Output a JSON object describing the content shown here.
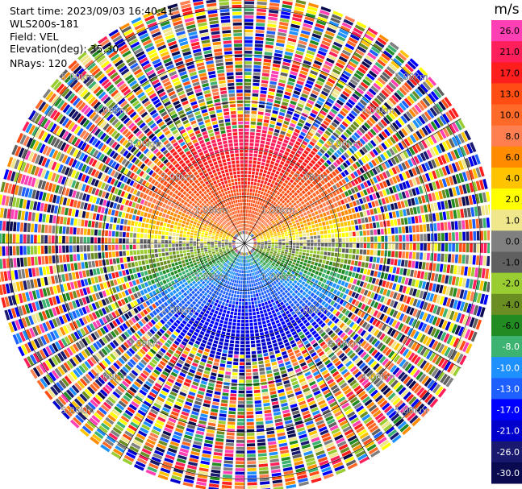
{
  "header": {
    "start_time": "Start time: 2023/09/03 16:40:41",
    "instrument": "WLS200s-181",
    "field": "Field: VEL",
    "elevation": "Elevation(deg): 35.30",
    "nrays": "NRays: 120"
  },
  "chart_data": {
    "type": "heatmap",
    "projection": "polar-ppi",
    "field": "VEL",
    "nrays": 120,
    "range_rings_km": [
      1,
      2,
      3,
      4,
      5
    ],
    "range_ring_labels": [
      "1.00km",
      "2.00km",
      "3.00km",
      "4.00km",
      "5.00km"
    ],
    "coherent_range_km": [
      0.4,
      2.2
    ],
    "colorbar": {
      "unit": "m/s",
      "ticks": [
        "26.0",
        "21.0",
        "17.0",
        "13.0",
        "10.0",
        "8.0",
        "6.0",
        "4.0",
        "2.0",
        "1.0",
        "0.0",
        "-1.0",
        "-2.0",
        "-4.0",
        "-6.0",
        "-8.0",
        "-10.0",
        "-13.0",
        "-17.0",
        "-21.0",
        "-26.0",
        "-30.0"
      ],
      "colors": [
        "#ff3fb4",
        "#ff1f5a",
        "#ff1e1e",
        "#ff4d14",
        "#ff6a28",
        "#ff7f50",
        "#ff8c00",
        "#ffc300",
        "#ffff00",
        "#f0e68c",
        "#808080",
        "#606060",
        "#9acd32",
        "#6b8e23",
        "#228b22",
        "#3cb371",
        "#1e90ff",
        "#1e60ff",
        "#0000ff",
        "#0000cd",
        "#191970",
        "#0a0a50"
      ]
    }
  }
}
